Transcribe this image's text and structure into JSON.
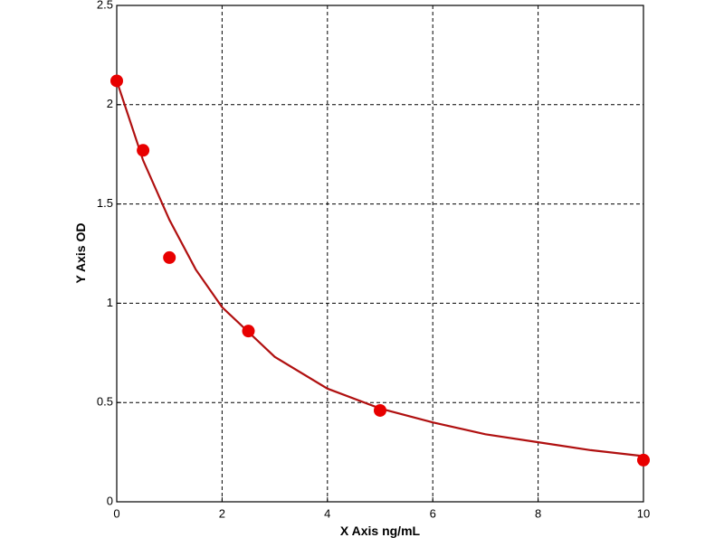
{
  "chart_data": {
    "type": "scatter",
    "x_label": "X Axis ng/mL",
    "y_label": "Y Axis OD",
    "xlim": [
      0,
      10
    ],
    "ylim": [
      0,
      2.5
    ],
    "xticks": [
      0,
      2,
      4,
      6,
      8,
      10
    ],
    "yticks": [
      0,
      0.5,
      1,
      1.5,
      2,
      2.5
    ],
    "grid": true,
    "series": [
      {
        "type": "line",
        "color": "#b01010",
        "x": [
          0,
          0.5,
          1,
          1.5,
          2,
          3,
          4,
          5,
          6,
          7,
          8,
          9,
          10
        ],
        "values": [
          2.12,
          1.72,
          1.42,
          1.17,
          0.98,
          0.73,
          0.57,
          0.47,
          0.4,
          0.34,
          0.3,
          0.26,
          0.23
        ]
      },
      {
        "type": "scatter",
        "color": "#e80000",
        "x": [
          0,
          0.5,
          1,
          2.5,
          5,
          10
        ],
        "values": [
          2.12,
          1.77,
          1.23,
          0.86,
          0.46,
          0.21
        ]
      }
    ]
  }
}
